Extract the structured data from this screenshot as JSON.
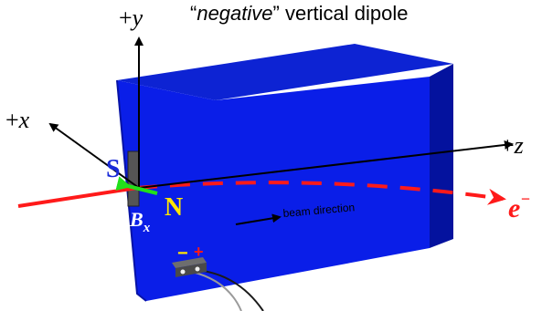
{
  "title": {
    "open_quote": "“",
    "word": "negative",
    "close_quote": "”",
    "rest": " vertical dipole"
  },
  "axes": {
    "y_sign": "+",
    "y": "y",
    "x_sign": "+",
    "x": "x",
    "z_sign": "+",
    "z": "z"
  },
  "magnet": {
    "south": "S",
    "north": "N"
  },
  "field_label": {
    "B": "B",
    "sub": "x"
  },
  "beam": {
    "direction_label": "beam direction",
    "particle": "e",
    "particle_sup": "−"
  },
  "probe": {
    "minus": "−",
    "plus": "+"
  },
  "colors": {
    "block_front": "#0a1ee8",
    "block_top": "#0d23d3",
    "block_side": "#04129e",
    "beam": "#ff1a1a",
    "field_arrow": "#22e01a",
    "north_label": "#ffe600",
    "south_label": "#1a2bd8",
    "axis": "#000000"
  }
}
